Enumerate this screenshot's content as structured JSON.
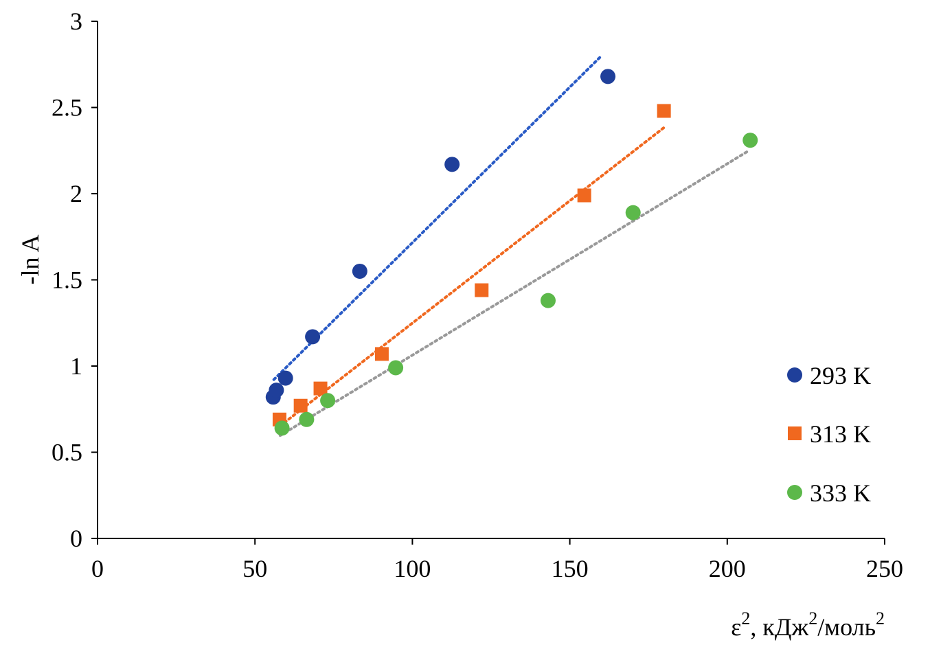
{
  "chart_data": {
    "type": "scatter",
    "title": "",
    "xlabel": {
      "base": "ε",
      "sup1": "2",
      "mid": ", кДж",
      "sup2": "2",
      "tail": "/моль",
      "sup3": "2"
    },
    "ylabel": "-ln A",
    "xlim": [
      0,
      250
    ],
    "ylim": [
      0,
      3
    ],
    "x_ticks": [
      0,
      50,
      100,
      150,
      200,
      250
    ],
    "y_ticks": [
      0,
      0.5,
      1,
      1.5,
      2,
      2.5,
      3
    ],
    "x_tick_labels": [
      "0",
      "50",
      "100",
      "150",
      "200",
      "250"
    ],
    "y_tick_labels": [
      "0",
      "0.5",
      "1",
      "1.5",
      "2",
      "2.5",
      "3"
    ],
    "grid": false,
    "legend_position": "right",
    "series": [
      {
        "name": "293 K",
        "marker": "circle",
        "color": "#1f3f9a",
        "trendline": {
          "type": "linear",
          "style": "dotted",
          "color": "#2a5bc6",
          "x_range": [
            56,
            160
          ]
        },
        "x": [
          55.8,
          56.8,
          59.7,
          68.3,
          83.3,
          112.6,
          162.1
        ],
        "y": [
          0.82,
          0.86,
          0.93,
          1.17,
          1.55,
          2.17,
          2.68
        ]
      },
      {
        "name": "313 K",
        "marker": "square",
        "color": "#f0681f",
        "trendline": {
          "type": "linear",
          "style": "dotted",
          "color": "#f0681f",
          "x_range": [
            58,
            180
          ]
        },
        "x": [
          57.8,
          64.5,
          70.8,
          90.3,
          122.0,
          154.6,
          179.9
        ],
        "y": [
          0.69,
          0.77,
          0.87,
          1.07,
          1.44,
          1.99,
          2.48
        ]
      },
      {
        "name": "333 K",
        "marker": "circle",
        "color": "#5cb84a",
        "trendline": {
          "type": "linear",
          "style": "dotted",
          "color": "#999999",
          "x_range": [
            58,
            207
          ]
        },
        "x": [
          58.6,
          66.4,
          73.1,
          94.7,
          143.1,
          170.1,
          207.3
        ],
        "y": [
          0.64,
          0.69,
          0.8,
          0.99,
          1.38,
          1.89,
          2.31
        ]
      }
    ]
  }
}
